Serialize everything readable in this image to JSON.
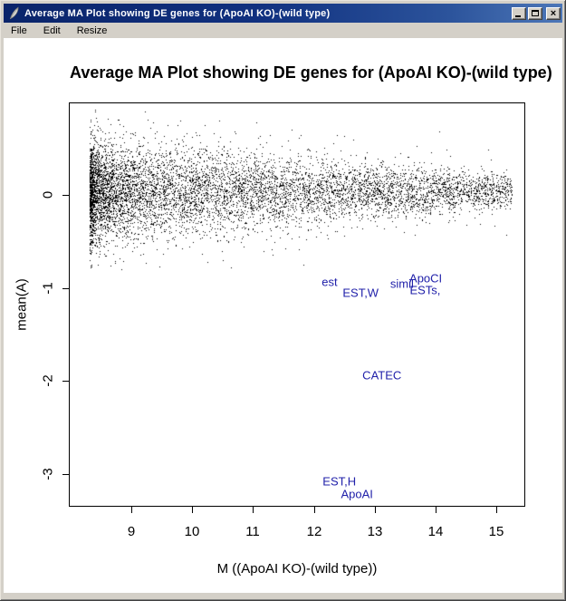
{
  "window": {
    "title": "Average MA Plot showing DE genes for (ApoAI KO)-(wild type)",
    "icon": "feather-icon",
    "buttons": {
      "minimize": "_",
      "maximize": "[]",
      "close": "×"
    },
    "menu": [
      {
        "label": "File"
      },
      {
        "label": "Edit"
      },
      {
        "label": "Resize"
      }
    ]
  },
  "colors": {
    "titlebar_left": "#0a246a",
    "titlebar_right": "#4d77b8",
    "frame": "#d4d0c8",
    "point": "#000000",
    "gene_label": "#2121aa"
  },
  "chart_data": {
    "type": "scatter",
    "title": "Average MA Plot showing DE genes for (ApoAI KO)-(wild type)",
    "xlabel": "M ((ApoAI KO)-(wild type))",
    "ylabel": "mean(A)",
    "xlim": [
      7.99,
      15.46
    ],
    "ylim": [
      -3.34,
      0.98
    ],
    "x_ticks": [
      9,
      10,
      11,
      12,
      13,
      14,
      15
    ],
    "y_ticks": [
      0,
      -1,
      -2,
      -3
    ],
    "grid": false,
    "legend": null,
    "de_gene_labels": [
      {
        "text": "est",
        "x": 12.26,
        "y": -0.93
      },
      {
        "text": "EST,W",
        "x": 12.77,
        "y": -1.05
      },
      {
        "text": "simil",
        "x": 13.45,
        "y": -0.95
      },
      {
        "text": "ApoCI",
        "x": 13.84,
        "y": -0.9
      },
      {
        "text": "ESTs,",
        "x": 13.83,
        "y": -1.02
      },
      {
        "text": "CATEC",
        "x": 13.12,
        "y": -1.94
      },
      {
        "text": "EST,H",
        "x": 12.42,
        "y": -3.08
      },
      {
        "text": "ApoAI",
        "x": 12.71,
        "y": -3.21
      }
    ],
    "point_cloud": {
      "description": "Dense band of ~thousands of unlabeled genes centered near y=0; densest at low x (8.3-11), tapering and narrowing toward x=15.2; sparse outliers reach y=+0.9 and y=-0.75",
      "n": 8000,
      "seed": 7,
      "x_min": 8.32,
      "x_max": 15.25,
      "x_power": 1.9,
      "y_center": 0.04,
      "y_sd_at_xmin": 0.27,
      "y_sd_at_xmax": 0.09,
      "tail_fraction": 0.05,
      "tail_mult": 2.1,
      "y_clip": [
        -0.8,
        0.92
      ]
    }
  }
}
